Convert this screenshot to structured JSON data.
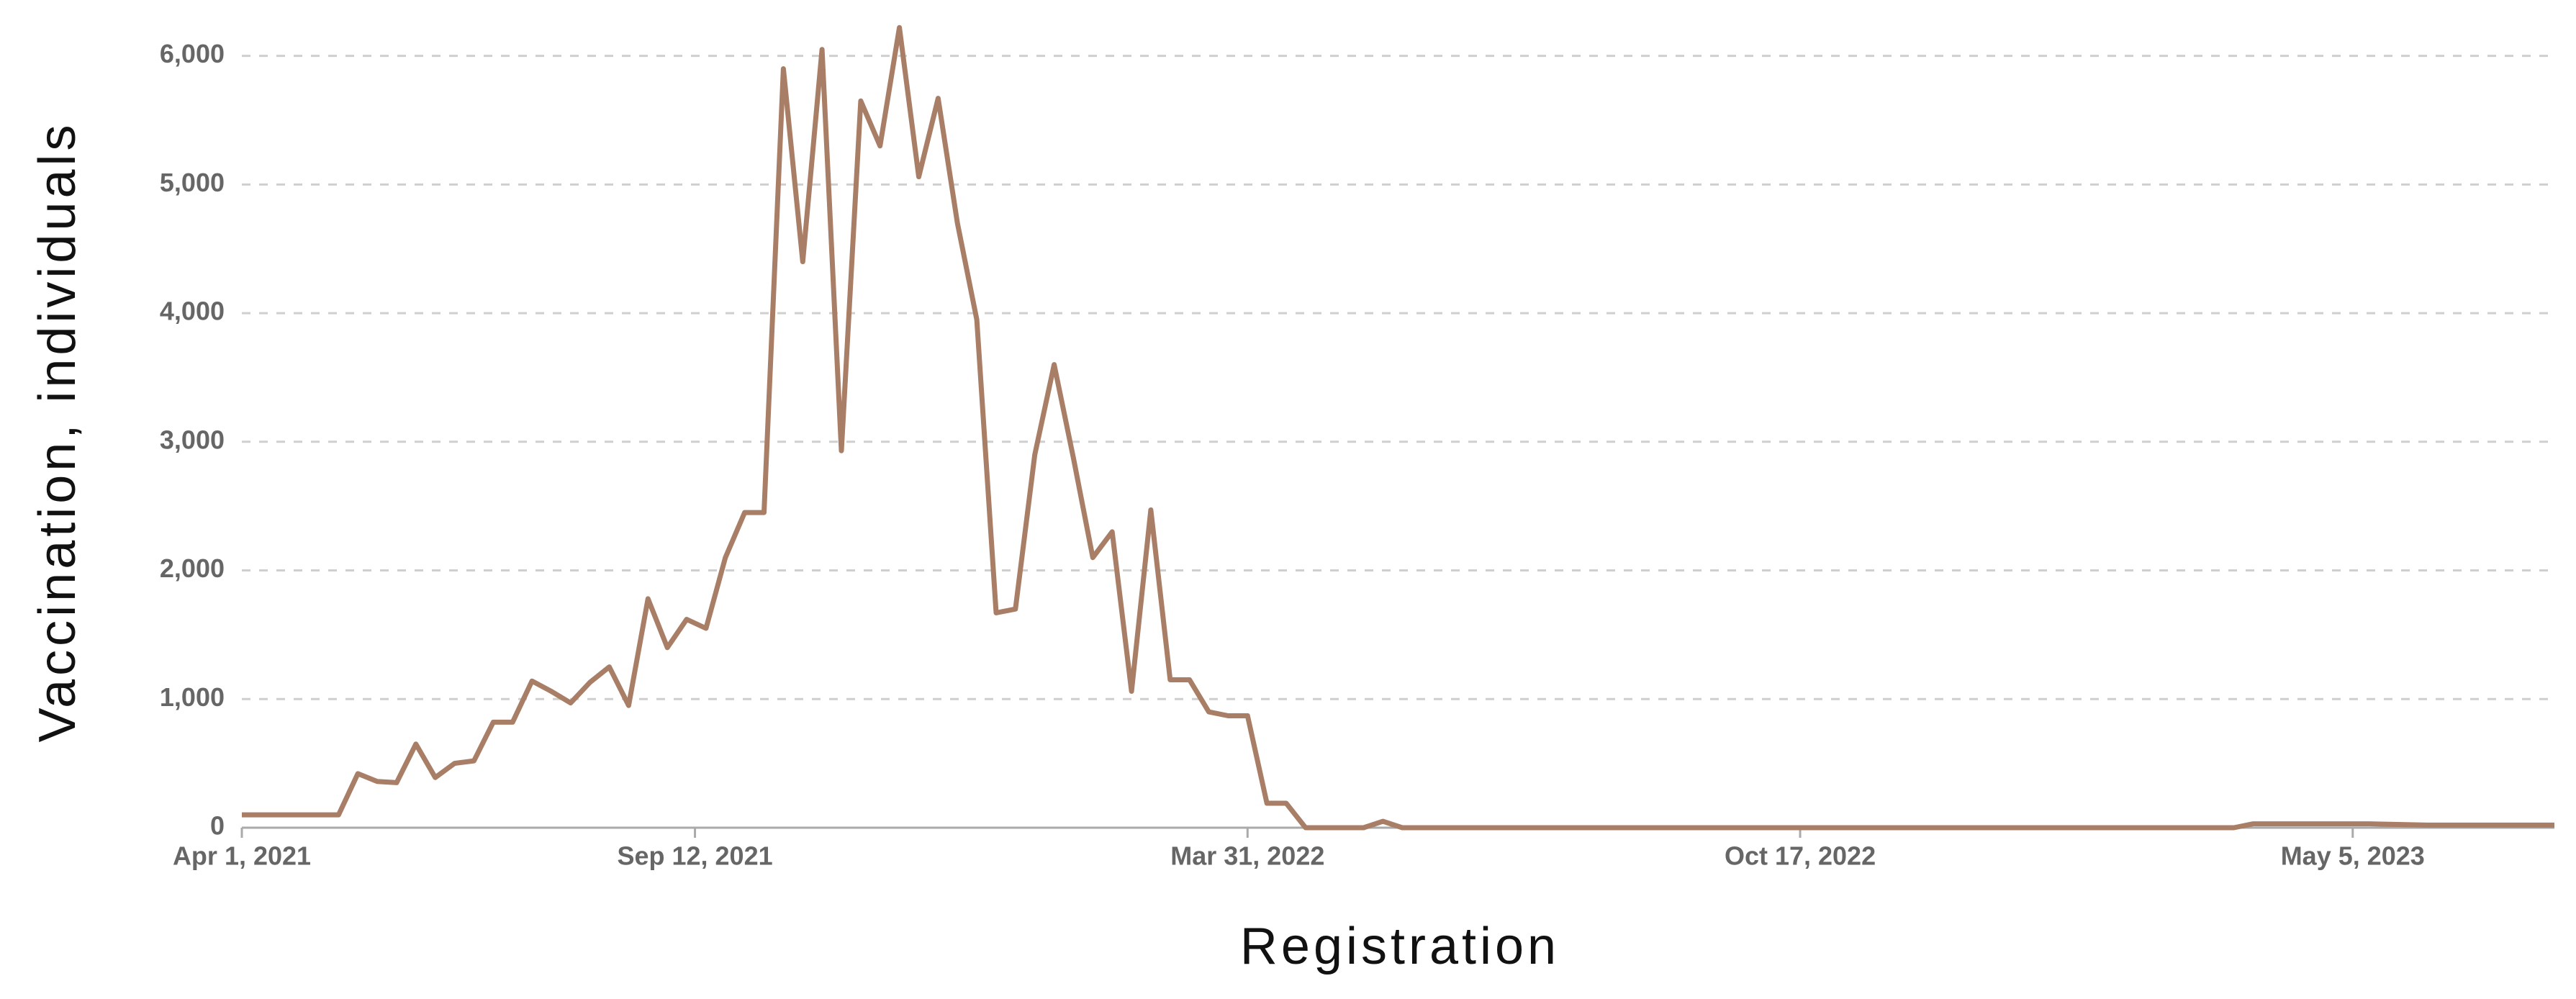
{
  "chart_data": {
    "type": "line",
    "xlabel": "Registration",
    "ylabel": "Vaccination, individuals",
    "color": "#a97e66",
    "grid": true,
    "x": [
      "2021-04-01",
      "2021-04-08",
      "2021-04-15",
      "2021-04-22",
      "2021-04-29",
      "2021-05-06",
      "2021-05-13",
      "2021-05-20",
      "2021-05-27",
      "2021-06-03",
      "2021-06-10",
      "2021-06-17",
      "2021-06-24",
      "2021-07-01",
      "2021-07-08",
      "2021-07-15",
      "2021-07-22",
      "2021-07-29",
      "2021-08-05",
      "2021-08-12",
      "2021-08-19",
      "2021-08-26",
      "2021-09-02",
      "2021-09-09",
      "2021-09-16",
      "2021-09-23",
      "2021-09-30",
      "2021-10-07",
      "2021-10-14",
      "2021-10-21",
      "2021-10-28",
      "2021-11-04",
      "2021-11-11",
      "2021-11-18",
      "2021-11-25",
      "2021-12-02",
      "2021-12-09",
      "2021-12-16",
      "2021-12-23",
      "2021-12-30",
      "2022-01-06",
      "2022-01-13",
      "2022-01-20",
      "2022-01-27",
      "2022-02-03",
      "2022-02-10",
      "2022-02-17",
      "2022-02-24",
      "2022-03-03",
      "2022-03-10",
      "2022-03-17",
      "2022-03-24",
      "2022-03-31",
      "2022-04-07",
      "2022-04-14",
      "2022-04-21",
      "2022-04-28",
      "2022-05-05",
      "2022-05-12",
      "2022-05-19",
      "2022-05-26",
      "2023-03-23",
      "2023-03-30",
      "2023-05-11",
      "2023-06-01",
      "2023-07-17"
    ],
    "values": [
      100,
      100,
      100,
      100,
      100,
      100,
      420,
      360,
      350,
      650,
      390,
      500,
      520,
      820,
      820,
      1140,
      1060,
      970,
      1130,
      1250,
      950,
      1780,
      1400,
      1620,
      1550,
      2100,
      2450,
      2450,
      5900,
      4400,
      6050,
      2930,
      5650,
      5300,
      6220,
      5060,
      5670,
      4700,
      3950,
      1670,
      1700,
      2900,
      3600,
      2870,
      2100,
      2300,
      1060,
      2470,
      1150,
      1150,
      900,
      870,
      870,
      190,
      190,
      0,
      0,
      0,
      0,
      50,
      0,
      0,
      30,
      30,
      20,
      20
    ],
    "xlim": [
      "2021-04-01",
      "2023-07-17"
    ],
    "xticks": [
      {
        "value": "2021-04-01",
        "label": "Apr 1, 2021"
      },
      {
        "value": "2021-09-12",
        "label": "Sep 12, 2021"
      },
      {
        "value": "2022-03-31",
        "label": "Mar 31, 2022"
      },
      {
        "value": "2022-10-17",
        "label": "Oct 17, 2022"
      },
      {
        "value": "2023-05-05",
        "label": "May 5, 2023"
      }
    ],
    "ylim": [
      0,
      6300
    ],
    "yticks": [
      0,
      {
        "value": 1000,
        "label": "1,000"
      },
      {
        "value": 2000,
        "label": "2,000"
      },
      {
        "value": 3000,
        "label": "3,000"
      },
      {
        "value": 4000,
        "label": "4,000"
      },
      {
        "value": 5000,
        "label": "5,000"
      },
      {
        "value": 6000,
        "label": "6,000"
      }
    ]
  }
}
